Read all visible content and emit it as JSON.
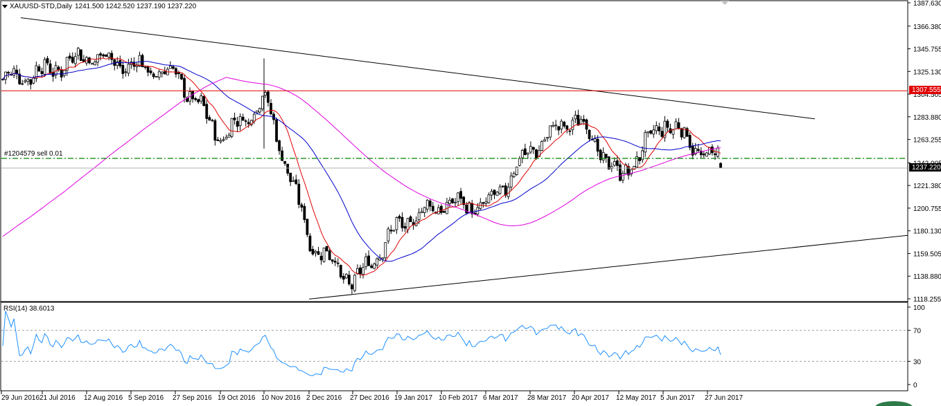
{
  "header": {
    "symbol_line": "XAUUSD-STD,Daily",
    "ohlc": "1241.500 1242.520 1237.190 1237.220"
  },
  "order_label": "#1204579 sell 0.01",
  "rsi": {
    "label": "RSI(14) 38.6013",
    "levels": [
      "100",
      "70",
      "30",
      "0"
    ]
  },
  "price_axis": {
    "ticks": [
      "1387.630",
      "1366.380",
      "1345.755",
      "1325.130",
      "1304.505",
      "1283.880",
      "1263.255",
      "1242.005",
      "1221.380",
      "1200.755",
      "1180.130",
      "1159.505",
      "1138.880",
      "1118.255"
    ],
    "resistance_label": "1307.555",
    "current_label": "1237.220"
  },
  "time_axis": {
    "labels": [
      "29 Jun 2016",
      "21 Jul 2016",
      "12 Aug 2016",
      "5 Sep 2016",
      "27 Sep 2016",
      "19 Oct 2016",
      "10 Nov 2016",
      "2 Dec 2016",
      "27 Dec 2016",
      "19 Jan 2017",
      "10 Feb 2017",
      "6 Mar 2017",
      "28 Mar 2017",
      "20 Apr 2017",
      "12 May 2017",
      "5 Jun 2017",
      "27 Jun 2017"
    ]
  },
  "colors": {
    "candles": "#000000",
    "ma_fast": "#e00000",
    "ma_mid": "#0000cc",
    "ma_slow": "#e000e0",
    "resistance": "#e00000",
    "order_line": "#008000",
    "rsi_line": "#1e90ff"
  },
  "chart_data": {
    "type": "candlestick",
    "symbol": "XAUUSD-STD",
    "timeframe": "Daily",
    "last_bar": {
      "open": 1241.5,
      "high": 1242.52,
      "low": 1237.19,
      "close": 1237.22
    },
    "price_range": [
      1118.255,
      1387.63
    ],
    "horizontal_lines": [
      {
        "price": 1307.555,
        "color": "red"
      },
      {
        "price": 1246.0,
        "color": "green",
        "style": "dash-dot",
        "label": "#1204579 sell 0.01"
      },
      {
        "price": 1237.22,
        "color": "gray"
      }
    ],
    "trend_lines": [
      {
        "from": {
          "date": "29 Jun 2016",
          "price": 1374
        },
        "to": {
          "date": "27 Jun 2017",
          "price": 1282
        }
      },
      {
        "from": {
          "date": "2 Dec 2016",
          "price": 1118
        },
        "to": {
          "date": "27 Jun 2017",
          "price": 1176
        }
      }
    ],
    "close_path": [
      {
        "date": "29 Jun 2016",
        "price": 1318
      },
      {
        "date": "21 Jul 2016",
        "price": 1325
      },
      {
        "date": "12 Aug 2016",
        "price": 1340
      },
      {
        "date": "5 Sep 2016",
        "price": 1330
      },
      {
        "date": "27 Sep 2016",
        "price": 1322
      },
      {
        "date": "19 Oct 2016",
        "price": 1264
      },
      {
        "date": "10 Nov 2016",
        "price": 1300
      },
      {
        "date": "2 Dec 2016",
        "price": 1170
      },
      {
        "date": "27 Dec 2016",
        "price": 1132
      },
      {
        "date": "19 Jan 2017",
        "price": 1185
      },
      {
        "date": "10 Feb 2017",
        "price": 1205
      },
      {
        "date": "6 Mar 2017",
        "price": 1202
      },
      {
        "date": "28 Mar 2017",
        "price": 1255
      },
      {
        "date": "20 Apr 2017",
        "price": 1284
      },
      {
        "date": "12 May 2017",
        "price": 1228
      },
      {
        "date": "5 Jun 2017",
        "price": 1280
      },
      {
        "date": "27 Jun 2017",
        "price": 1247
      }
    ],
    "rsi": {
      "period": 14,
      "last": 38.6013,
      "levels": [
        70,
        30
      ]
    }
  }
}
